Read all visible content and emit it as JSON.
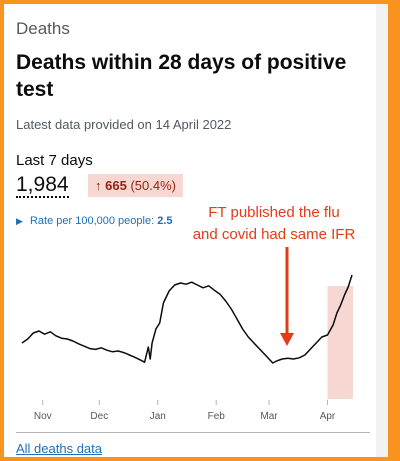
{
  "kicker": "Deaths",
  "title": "Deaths within 28 days of positive test",
  "updated": "Latest data provided on 14 April 2022",
  "summary": {
    "period_label": "Last 7 days",
    "total": "1,984",
    "change_value": "665",
    "change_percent": "(50.4%)",
    "rate_label": "Rate per 100,000 people:",
    "rate_value": "2.5"
  },
  "annotation": {
    "line1": "FT published the flu",
    "line2": "and covid had same IFR"
  },
  "footer_link": "All deaths data",
  "colors": {
    "line": "#0b0c0c",
    "highlight": "#f6d7d2",
    "annotation": "#e53a16",
    "link": "#1d70b8",
    "border": "#f7931e"
  },
  "chart_data": {
    "type": "line",
    "title": "",
    "xlabel": "",
    "ylabel": "",
    "ylim": [
      0,
      350
    ],
    "grid": false,
    "x_start": "2021-10-21",
    "x_end": "2022-04-14",
    "ticks": [
      {
        "label": "Nov",
        "date": "2021-11-01"
      },
      {
        "label": "Dec",
        "date": "2021-12-01"
      },
      {
        "label": "Jan",
        "date": "2022-01-01"
      },
      {
        "label": "Feb",
        "date": "2022-02-01"
      },
      {
        "label": "Mar",
        "date": "2022-03-01"
      },
      {
        "label": "Apr",
        "date": "2022-04-01"
      }
    ],
    "highlight_range": [
      "2022-04-01",
      "2022-04-14"
    ],
    "series": [
      {
        "values": [
          {
            "date": "2021-10-21",
            "value": 140
          },
          {
            "date": "2021-10-24",
            "value": 150
          },
          {
            "date": "2021-10-27",
            "value": 165
          },
          {
            "date": "2021-10-30",
            "value": 170
          },
          {
            "date": "2021-11-02",
            "value": 162
          },
          {
            "date": "2021-11-05",
            "value": 168
          },
          {
            "date": "2021-11-08",
            "value": 158
          },
          {
            "date": "2021-11-11",
            "value": 152
          },
          {
            "date": "2021-11-14",
            "value": 150
          },
          {
            "date": "2021-11-17",
            "value": 145
          },
          {
            "date": "2021-11-20",
            "value": 138
          },
          {
            "date": "2021-11-23",
            "value": 132
          },
          {
            "date": "2021-11-26",
            "value": 126
          },
          {
            "date": "2021-11-29",
            "value": 124
          },
          {
            "date": "2021-12-02",
            "value": 128
          },
          {
            "date": "2021-12-05",
            "value": 122
          },
          {
            "date": "2021-12-08",
            "value": 118
          },
          {
            "date": "2021-12-11",
            "value": 120
          },
          {
            "date": "2021-12-14",
            "value": 116
          },
          {
            "date": "2021-12-17",
            "value": 110
          },
          {
            "date": "2021-12-20",
            "value": 104
          },
          {
            "date": "2021-12-23",
            "value": 97
          },
          {
            "date": "2021-12-25",
            "value": 92
          },
          {
            "date": "2021-12-27",
            "value": 130
          },
          {
            "date": "2021-12-28",
            "value": 100
          },
          {
            "date": "2021-12-29",
            "value": 140
          },
          {
            "date": "2021-12-31",
            "value": 175
          },
          {
            "date": "2022-01-02",
            "value": 190
          },
          {
            "date": "2022-01-04",
            "value": 240
          },
          {
            "date": "2022-01-07",
            "value": 270
          },
          {
            "date": "2022-01-10",
            "value": 285
          },
          {
            "date": "2022-01-13",
            "value": 290
          },
          {
            "date": "2022-01-16",
            "value": 287
          },
          {
            "date": "2022-01-19",
            "value": 292
          },
          {
            "date": "2022-01-22",
            "value": 285
          },
          {
            "date": "2022-01-25",
            "value": 278
          },
          {
            "date": "2022-01-28",
            "value": 283
          },
          {
            "date": "2022-01-31",
            "value": 272
          },
          {
            "date": "2022-02-03",
            "value": 262
          },
          {
            "date": "2022-02-06",
            "value": 245
          },
          {
            "date": "2022-02-09",
            "value": 225
          },
          {
            "date": "2022-02-12",
            "value": 200
          },
          {
            "date": "2022-02-15",
            "value": 175
          },
          {
            "date": "2022-02-18",
            "value": 155
          },
          {
            "date": "2022-02-21",
            "value": 140
          },
          {
            "date": "2022-02-24",
            "value": 125
          },
          {
            "date": "2022-02-27",
            "value": 110
          },
          {
            "date": "2022-03-01",
            "value": 100
          },
          {
            "date": "2022-03-03",
            "value": 90
          },
          {
            "date": "2022-03-05",
            "value": 95
          },
          {
            "date": "2022-03-08",
            "value": 100
          },
          {
            "date": "2022-03-11",
            "value": 102
          },
          {
            "date": "2022-03-14",
            "value": 100
          },
          {
            "date": "2022-03-17",
            "value": 103
          },
          {
            "date": "2022-03-20",
            "value": 110
          },
          {
            "date": "2022-03-23",
            "value": 125
          },
          {
            "date": "2022-03-26",
            "value": 140
          },
          {
            "date": "2022-03-29",
            "value": 155
          },
          {
            "date": "2022-04-01",
            "value": 160
          },
          {
            "date": "2022-04-04",
            "value": 185
          },
          {
            "date": "2022-04-06",
            "value": 215
          },
          {
            "date": "2022-04-08",
            "value": 235
          },
          {
            "date": "2022-04-10",
            "value": 260
          },
          {
            "date": "2022-04-12",
            "value": 280
          },
          {
            "date": "2022-04-14",
            "value": 310
          }
        ]
      }
    ]
  }
}
